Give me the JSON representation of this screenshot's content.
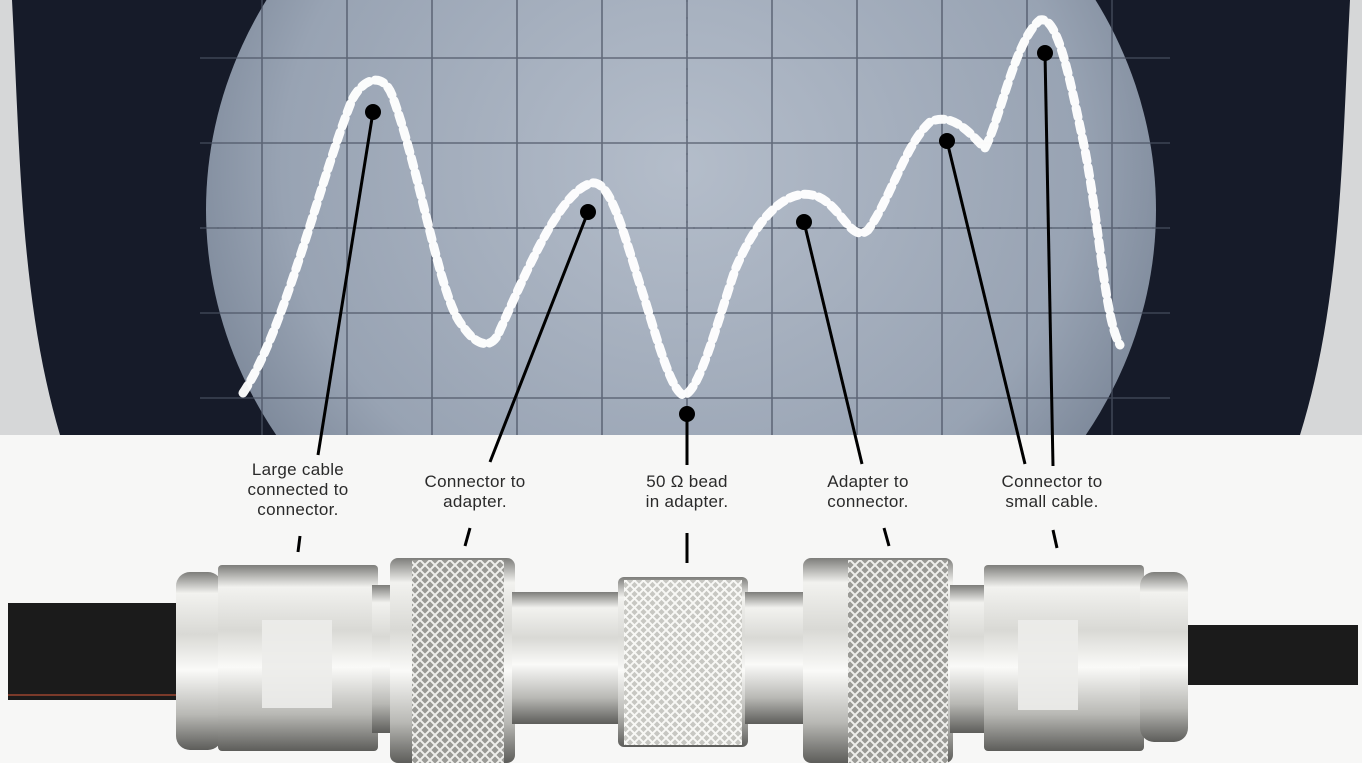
{
  "labels": [
    {
      "lines": [
        "Large cable",
        "connected to",
        "connector."
      ]
    },
    {
      "lines": [
        "Connector to",
        "adapter."
      ]
    },
    {
      "lines": [
        "50 Ω bead",
        "in adapter."
      ]
    },
    {
      "lines": [
        "Adapter to",
        "connector."
      ]
    },
    {
      "lines": [
        "Connector to",
        "small cable."
      ]
    }
  ],
  "colors": {
    "crt_glow": "#a9b3c1",
    "crt_frame": "#151a28",
    "trace": "#ffffff",
    "cable": "#1a1a1a",
    "metal": "#d8d8d4"
  }
}
